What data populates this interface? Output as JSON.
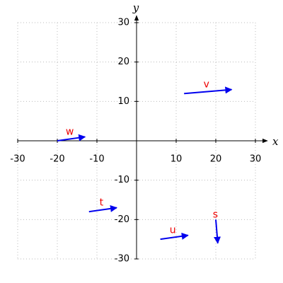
{
  "chart_data": {
    "type": "quiver",
    "xlabel": "x",
    "ylabel": "y",
    "xlim": [
      -30,
      30
    ],
    "ylim": [
      -30,
      30
    ],
    "xticks": [
      -30,
      -20,
      -10,
      10,
      20,
      30
    ],
    "yticks": [
      -30,
      -20,
      -10,
      10,
      20,
      30
    ],
    "grid": true,
    "color": "#0000ee",
    "label_color": "#ee0000",
    "vectors": [
      {
        "name": "v",
        "x": 12,
        "y": 12,
        "dx": 12,
        "dy": 1
      },
      {
        "name": "w",
        "x": -20,
        "y": 0,
        "dx": 7,
        "dy": 1
      },
      {
        "name": "t",
        "x": -12,
        "y": -18,
        "dx": 7,
        "dy": 1
      },
      {
        "name": "u",
        "x": 6,
        "y": -25,
        "dx": 7,
        "dy": 1
      },
      {
        "name": "s",
        "x": 20,
        "y": -20,
        "dx": 0.5,
        "dy": -6
      }
    ]
  }
}
